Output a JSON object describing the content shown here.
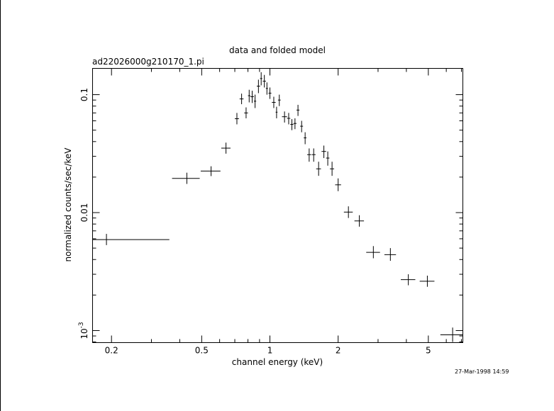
{
  "chart_data": {
    "type": "scatter",
    "title": "data and folded model",
    "subtitle": "ad22026000g210170_1.pi",
    "xlabel": "channel energy (keV)",
    "ylabel": "normalized counts/sec/keV",
    "x_scale": "log",
    "y_scale": "log",
    "xlim": [
      0.165,
      7.1
    ],
    "ylim": [
      0.00079,
      0.167
    ],
    "x_ticks": [
      {
        "value": 0.2,
        "label": "0.2"
      },
      {
        "value": 0.5,
        "label": "0.5"
      },
      {
        "value": 1,
        "label": "1"
      },
      {
        "value": 2,
        "label": "2"
      },
      {
        "value": 5,
        "label": "5"
      }
    ],
    "y_ticks": [
      {
        "value": 0.1,
        "label": "0.1"
      },
      {
        "value": 0.01,
        "label": "0.01"
      },
      {
        "value": 0.001,
        "label": "10^-3"
      }
    ],
    "grid": false,
    "series": [
      {
        "points": [
          {
            "x": 0.19,
            "xlo": 0.165,
            "xhi": 0.36,
            "y": 0.0059,
            "ylo": 0.0053,
            "yhi": 0.0066
          },
          {
            "x": 0.43,
            "xlo": 0.37,
            "xhi": 0.49,
            "y": 0.0195,
            "ylo": 0.0175,
            "yhi": 0.0218
          },
          {
            "x": 0.55,
            "xlo": 0.495,
            "xhi": 0.605,
            "y": 0.0225,
            "ylo": 0.0204,
            "yhi": 0.0247
          },
          {
            "x": 0.64,
            "xlo": 0.61,
            "xhi": 0.67,
            "y": 0.0352,
            "ylo": 0.0316,
            "yhi": 0.0392
          },
          {
            "x": 0.715,
            "xlo": 0.7,
            "xhi": 0.73,
            "y": 0.0625,
            "ylo": 0.056,
            "yhi": 0.07
          },
          {
            "x": 0.75,
            "xlo": 0.735,
            "xhi": 0.765,
            "y": 0.092,
            "ylo": 0.083,
            "yhi": 0.102
          },
          {
            "x": 0.785,
            "xlo": 0.77,
            "xhi": 0.8,
            "y": 0.07,
            "ylo": 0.063,
            "yhi": 0.078
          },
          {
            "x": 0.81,
            "xlo": 0.8,
            "xhi": 0.82,
            "y": 0.098,
            "ylo": 0.086,
            "yhi": 0.11
          },
          {
            "x": 0.835,
            "xlo": 0.82,
            "xhi": 0.85,
            "y": 0.096,
            "ylo": 0.085,
            "yhi": 0.108
          },
          {
            "x": 0.86,
            "xlo": 0.85,
            "xhi": 0.87,
            "y": 0.088,
            "ylo": 0.077,
            "yhi": 0.1
          },
          {
            "x": 0.89,
            "xlo": 0.875,
            "xhi": 0.905,
            "y": 0.118,
            "ylo": 0.103,
            "yhi": 0.134
          },
          {
            "x": 0.915,
            "xlo": 0.905,
            "xhi": 0.925,
            "y": 0.137,
            "ylo": 0.12,
            "yhi": 0.155
          },
          {
            "x": 0.945,
            "xlo": 0.93,
            "xhi": 0.96,
            "y": 0.13,
            "ylo": 0.115,
            "yhi": 0.147
          },
          {
            "x": 0.97,
            "xlo": 0.96,
            "xhi": 0.98,
            "y": 0.113,
            "ylo": 0.1,
            "yhi": 0.127
          },
          {
            "x": 1.0,
            "xlo": 0.985,
            "xhi": 1.015,
            "y": 0.103,
            "ylo": 0.092,
            "yhi": 0.115
          },
          {
            "x": 1.04,
            "xlo": 1.02,
            "xhi": 1.06,
            "y": 0.086,
            "ylo": 0.077,
            "yhi": 0.096
          },
          {
            "x": 1.07,
            "xlo": 1.06,
            "xhi": 1.08,
            "y": 0.071,
            "ylo": 0.063,
            "yhi": 0.079
          },
          {
            "x": 1.1,
            "xlo": 1.085,
            "xhi": 1.115,
            "y": 0.09,
            "ylo": 0.08,
            "yhi": 0.1
          },
          {
            "x": 1.16,
            "xlo": 1.13,
            "xhi": 1.19,
            "y": 0.065,
            "ylo": 0.058,
            "yhi": 0.072
          },
          {
            "x": 1.21,
            "xlo": 1.19,
            "xhi": 1.23,
            "y": 0.063,
            "ylo": 0.056,
            "yhi": 0.07
          },
          {
            "x": 1.25,
            "xlo": 1.23,
            "xhi": 1.27,
            "y": 0.056,
            "ylo": 0.05,
            "yhi": 0.062
          },
          {
            "x": 1.29,
            "xlo": 1.27,
            "xhi": 1.31,
            "y": 0.057,
            "ylo": 0.051,
            "yhi": 0.063
          },
          {
            "x": 1.33,
            "xlo": 1.31,
            "xhi": 1.35,
            "y": 0.074,
            "ylo": 0.066,
            "yhi": 0.082
          },
          {
            "x": 1.38,
            "xlo": 1.36,
            "xhi": 1.4,
            "y": 0.054,
            "ylo": 0.048,
            "yhi": 0.06
          },
          {
            "x": 1.43,
            "xlo": 1.41,
            "xhi": 1.45,
            "y": 0.043,
            "ylo": 0.038,
            "yhi": 0.048
          },
          {
            "x": 1.49,
            "xlo": 1.46,
            "xhi": 1.52,
            "y": 0.031,
            "ylo": 0.027,
            "yhi": 0.035
          },
          {
            "x": 1.56,
            "xlo": 1.53,
            "xhi": 1.59,
            "y": 0.031,
            "ylo": 0.027,
            "yhi": 0.035
          },
          {
            "x": 1.64,
            "xlo": 1.6,
            "xhi": 1.68,
            "y": 0.0235,
            "ylo": 0.0205,
            "yhi": 0.027
          },
          {
            "x": 1.73,
            "xlo": 1.69,
            "xhi": 1.77,
            "y": 0.033,
            "ylo": 0.029,
            "yhi": 0.037
          },
          {
            "x": 1.8,
            "xlo": 1.77,
            "xhi": 1.83,
            "y": 0.029,
            "ylo": 0.025,
            "yhi": 0.033
          },
          {
            "x": 1.88,
            "xlo": 1.84,
            "xhi": 1.92,
            "y": 0.0235,
            "ylo": 0.0205,
            "yhi": 0.027
          },
          {
            "x": 2.0,
            "xlo": 1.94,
            "xhi": 2.06,
            "y": 0.0172,
            "ylo": 0.0152,
            "yhi": 0.0195
          },
          {
            "x": 2.22,
            "xlo": 2.12,
            "xhi": 2.32,
            "y": 0.0101,
            "ylo": 0.009,
            "yhi": 0.0113
          },
          {
            "x": 2.48,
            "xlo": 2.36,
            "xhi": 2.6,
            "y": 0.0085,
            "ylo": 0.0076,
            "yhi": 0.0095
          },
          {
            "x": 2.86,
            "xlo": 2.66,
            "xhi": 3.06,
            "y": 0.0046,
            "ylo": 0.0041,
            "yhi": 0.0052
          },
          {
            "x": 3.4,
            "xlo": 3.2,
            "xhi": 3.6,
            "y": 0.0044,
            "ylo": 0.0039,
            "yhi": 0.005
          },
          {
            "x": 4.08,
            "xlo": 3.78,
            "xhi": 4.38,
            "y": 0.0027,
            "ylo": 0.00242,
            "yhi": 0.003
          },
          {
            "x": 4.95,
            "xlo": 4.58,
            "xhi": 5.32,
            "y": 0.00262,
            "ylo": 0.00235,
            "yhi": 0.00292
          },
          {
            "x": 6.4,
            "xlo": 5.65,
            "xhi": 7.1,
            "y": 0.00092,
            "ylo": 0.0008,
            "yhi": 0.00106
          }
        ]
      }
    ]
  },
  "footer": {
    "timestamp": "27-Mar-1998 14:59"
  }
}
